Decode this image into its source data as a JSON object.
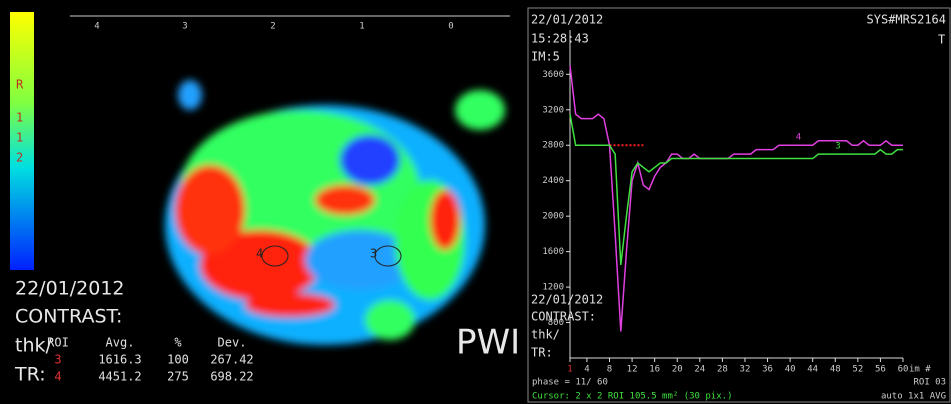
{
  "left": {
    "ruler": [
      "4",
      "3",
      "2",
      "1",
      "0"
    ],
    "scale_labels": [
      "R",
      "1",
      "1",
      "2"
    ],
    "roi_labels": [
      "4",
      "3"
    ],
    "info": [
      "22/01/2012",
      "CONTRAST:",
      "thk/",
      "TR:"
    ],
    "table": {
      "header": [
        "ROI",
        "Avg.",
        "%",
        "Dev."
      ],
      "rows": [
        [
          "3",
          "1616.3",
          "100",
          "267.42"
        ],
        [
          "4",
          "4451.2",
          "275",
          "698.22"
        ]
      ]
    },
    "caption": "PWI"
  },
  "right": {
    "top_left": [
      "22/01/2012",
      "15:28:43",
      "IM:5"
    ],
    "top_right": [
      "SYS#MRS2164",
      "T"
    ],
    "info": [
      "22/01/2012",
      "CONTRAST:",
      "thk/",
      "TR:"
    ],
    "phase": "phase = 11/ 60",
    "cursor": "Cursor: 2 x 2  ROI 105.5 mm² (30 pix.)",
    "roi": "ROI 03",
    "mode": "auto   1x1   AVG",
    "x_unit": "im #"
  },
  "chart_data": {
    "type": "line",
    "x": [
      1,
      2,
      3,
      4,
      5,
      6,
      7,
      8,
      9,
      10,
      11,
      12,
      13,
      14,
      15,
      16,
      17,
      18,
      19,
      20,
      21,
      22,
      23,
      24,
      25,
      26,
      27,
      28,
      29,
      30,
      31,
      32,
      33,
      34,
      35,
      36,
      37,
      38,
      39,
      40,
      41,
      42,
      43,
      44,
      45,
      46,
      47,
      48,
      49,
      50,
      51,
      52,
      53,
      54,
      55,
      56,
      57,
      58,
      59,
      60
    ],
    "series": [
      {
        "name": "4",
        "color": "#e040e0",
        "values": [
          3700,
          3150,
          3100,
          3100,
          3100,
          3150,
          3100,
          2800,
          1800,
          700,
          1600,
          2400,
          2600,
          2350,
          2300,
          2450,
          2550,
          2600,
          2700,
          2700,
          2650,
          2650,
          2700,
          2650,
          2650,
          2650,
          2650,
          2650,
          2650,
          2700,
          2700,
          2700,
          2700,
          2750,
          2750,
          2750,
          2750,
          2800,
          2800,
          2800,
          2800,
          2800,
          2800,
          2800,
          2850,
          2850,
          2850,
          2850,
          2850,
          2850,
          2800,
          2800,
          2850,
          2800,
          2800,
          2800,
          2850,
          2800,
          2800,
          2800
        ]
      },
      {
        "name": "3",
        "color": "#40e040",
        "values": [
          3150,
          2800,
          2800,
          2800,
          2800,
          2800,
          2800,
          2800,
          2700,
          1450,
          2000,
          2500,
          2600,
          2550,
          2500,
          2550,
          2600,
          2600,
          2650,
          2650,
          2650,
          2650,
          2650,
          2650,
          2650,
          2650,
          2650,
          2650,
          2650,
          2650,
          2650,
          2650,
          2650,
          2650,
          2650,
          2650,
          2650,
          2650,
          2650,
          2650,
          2650,
          2650,
          2650,
          2650,
          2700,
          2700,
          2700,
          2700,
          2700,
          2700,
          2700,
          2700,
          2700,
          2700,
          2700,
          2750,
          2700,
          2700,
          2750,
          2750
        ]
      }
    ],
    "baseline": 2800,
    "baseline_x": [
      8,
      14
    ],
    "xlim": [
      1,
      60
    ],
    "xticks": [
      1,
      4,
      8,
      12,
      16,
      20,
      24,
      28,
      32,
      36,
      40,
      44,
      48,
      52,
      56,
      60
    ],
    "ylim": [
      400,
      4100
    ],
    "yticks": [
      800,
      1200,
      1600,
      2000,
      2400,
      2800,
      3200,
      3600
    ]
  }
}
